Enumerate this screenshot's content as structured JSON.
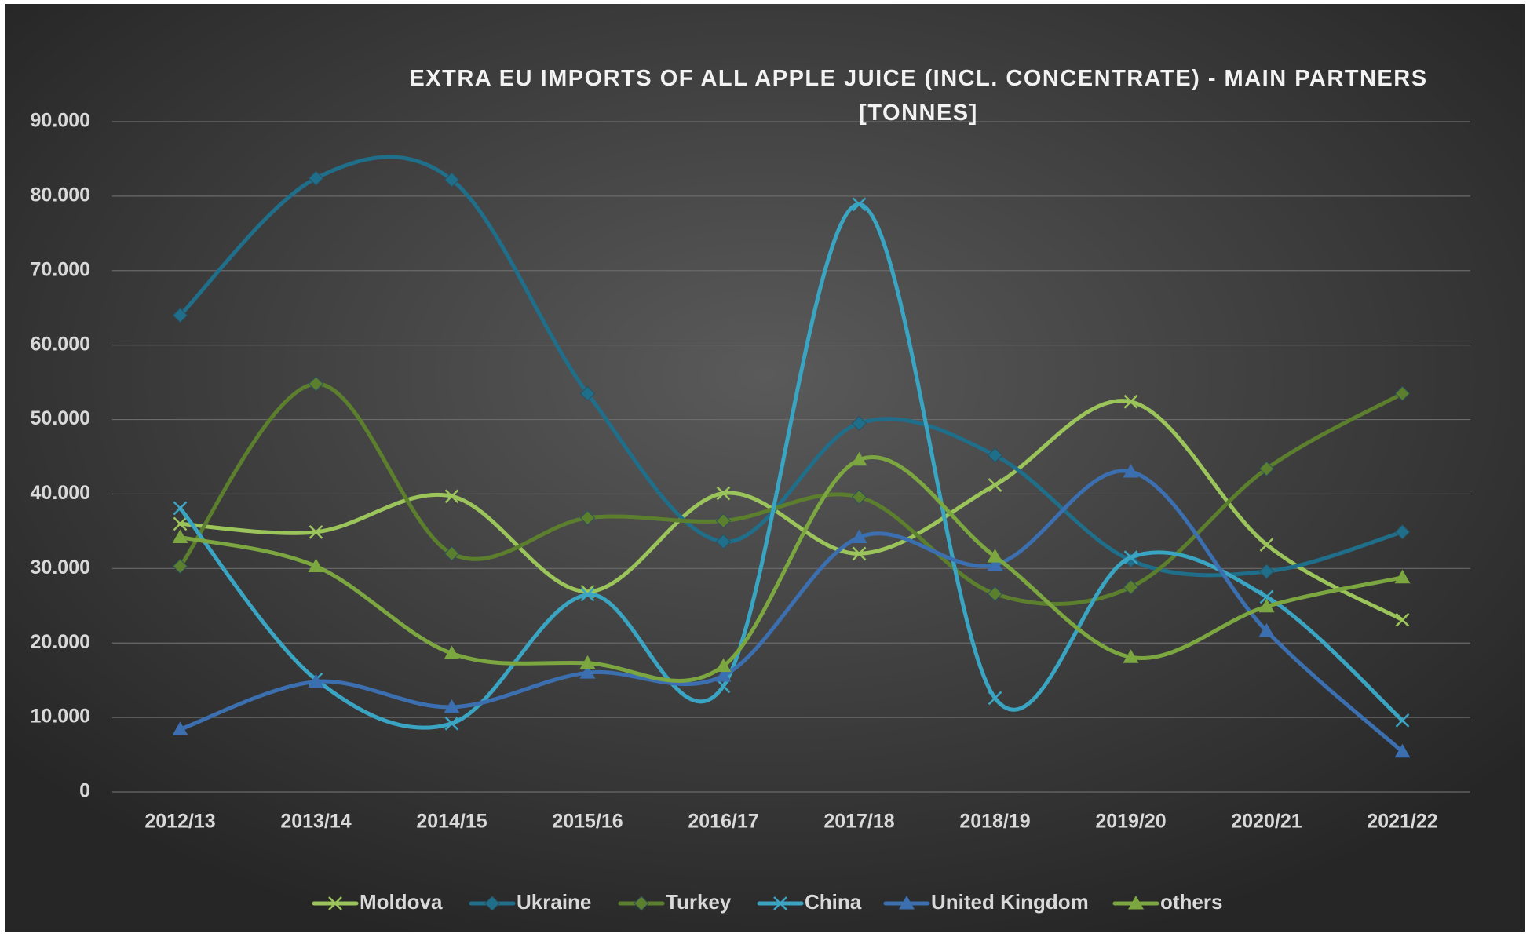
{
  "chart_data": {
    "type": "line",
    "title": "EXTRA EU IMPORTS OF ALL APPLE JUICE (INCL. CONCENTRATE) - MAIN PARTNERS [TONNES]",
    "categories": [
      "2012/13",
      "2013/14",
      "2014/15",
      "2015/16",
      "2016/17",
      "2017/18",
      "2018/19",
      "2019/20",
      "2020/21",
      "2021/22"
    ],
    "series": [
      {
        "name": "Moldova",
        "color": "#9bc45a",
        "marker": "x",
        "values": [
          36000,
          34900,
          39700,
          26900,
          40100,
          32000,
          41200,
          52400,
          33200,
          23100
        ]
      },
      {
        "name": "Ukraine",
        "color": "#1f6e8a",
        "marker": "diamond",
        "values": [
          64000,
          82400,
          82200,
          53500,
          33600,
          49500,
          45200,
          31100,
          29600,
          34900
        ]
      },
      {
        "name": "Turkey",
        "color": "#5c7f2e",
        "marker": "diamond",
        "values": [
          30300,
          54800,
          32000,
          36800,
          36400,
          39600,
          26600,
          27500,
          43400,
          53500
        ]
      },
      {
        "name": "China",
        "color": "#3aa5c3",
        "marker": "x",
        "values": [
          38100,
          15100,
          9200,
          26500,
          14200,
          78900,
          12600,
          31500,
          26200,
          9600
        ]
      },
      {
        "name": "United Kingdom",
        "color": "#3b6fb0",
        "marker": "triangle",
        "values": [
          8400,
          14800,
          11400,
          16000,
          15600,
          34200,
          30500,
          43000,
          21600,
          5400
        ]
      },
      {
        "name": "others",
        "color": "#7ba640",
        "marker": "triangle",
        "values": [
          34200,
          30300,
          18600,
          17300,
          16900,
          44600,
          31600,
          18100,
          24900,
          28800
        ]
      }
    ],
    "ylim": [
      0,
      90000
    ],
    "yticks": [
      0,
      {
        "value": 10000,
        "label": "10.000"
      },
      {
        "value": 20000,
        "label": "20.000"
      },
      {
        "value": 30000,
        "label": "30.000"
      },
      {
        "value": 40000,
        "label": "40.000"
      },
      {
        "value": 50000,
        "label": "50.000"
      },
      {
        "value": 60000,
        "label": "60.000"
      },
      {
        "value": 70000,
        "label": "70.000"
      },
      {
        "value": 80000,
        "label": "80.000"
      },
      {
        "value": 90000,
        "label": "90.000"
      }
    ],
    "grid": true,
    "smooth": true,
    "legend": "bottom"
  }
}
